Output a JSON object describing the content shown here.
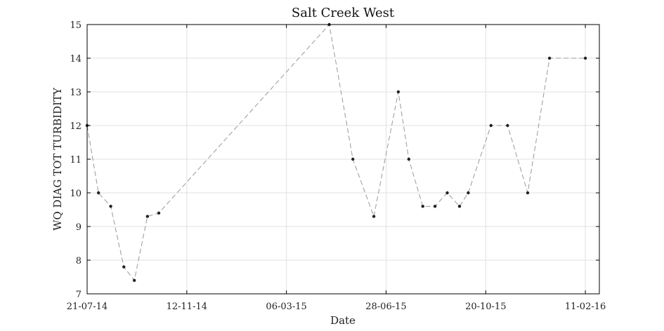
{
  "chart_data": {
    "type": "line",
    "title": "Salt Creek West",
    "xlabel": "Date",
    "ylabel": "WQ DIAG TOT TURBIDITY",
    "x_type": "date",
    "date_format": "DD-MM-YY",
    "xlim": [
      "2014-07-21",
      "2016-02-27"
    ],
    "ylim": [
      7,
      15
    ],
    "x_ticks": [
      "21-07-14",
      "12-11-14",
      "06-03-15",
      "28-06-15",
      "20-10-15",
      "11-02-16"
    ],
    "y_ticks": [
      "7",
      "8",
      "9",
      "10",
      "11",
      "12",
      "13",
      "14",
      "15"
    ],
    "grid": true,
    "line_style": "dashed",
    "colors": {
      "line": "#999999",
      "marker": "#222222",
      "grid": "#e0e0e0",
      "axis": "#000000"
    },
    "series": [
      {
        "x": [
          "2014-07-21",
          "2014-08-03",
          "2014-08-17",
          "2014-09-01",
          "2014-09-13",
          "2014-09-28",
          "2014-10-11",
          "2015-04-24",
          "2015-05-21",
          "2015-06-14",
          "2015-07-12",
          "2015-07-24",
          "2015-08-09",
          "2015-08-23",
          "2015-09-06",
          "2015-09-20",
          "2015-09-30",
          "2015-10-26",
          "2015-11-14",
          "2015-12-07",
          "2016-01-01",
          "2016-02-11"
        ],
        "y": [
          12,
          10,
          9.6,
          7.8,
          7.4,
          9.3,
          9.4,
          15,
          11,
          9.3,
          13,
          11,
          9.6,
          9.6,
          10,
          9.6,
          10,
          12,
          12,
          10,
          14,
          14
        ]
      }
    ]
  }
}
